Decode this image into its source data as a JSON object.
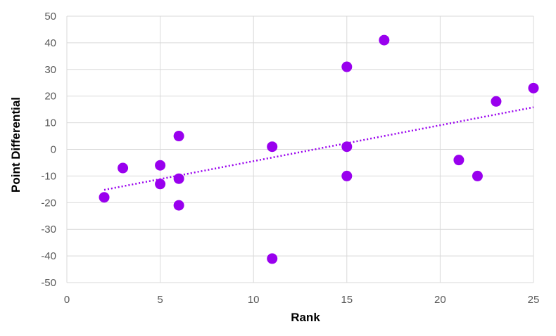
{
  "chart_data": {
    "type": "scatter",
    "title": "",
    "xlabel": "Rank",
    "ylabel": "Point Differential",
    "xlim": [
      0,
      25
    ],
    "ylim": [
      -50,
      50
    ],
    "x_ticks": [
      0,
      5,
      10,
      15,
      20,
      25
    ],
    "y_ticks": [
      -50,
      -40,
      -30,
      -20,
      -10,
      0,
      10,
      20,
      30,
      40,
      50
    ],
    "grid": true,
    "legend": "none",
    "series": [
      {
        "marker_color": "#9900ee",
        "points": [
          {
            "x": 2,
            "y": -18
          },
          {
            "x": 3,
            "y": -7
          },
          {
            "x": 5,
            "y": -6
          },
          {
            "x": 5,
            "y": -13
          },
          {
            "x": 6,
            "y": 5
          },
          {
            "x": 6,
            "y": -11
          },
          {
            "x": 6,
            "y": -21
          },
          {
            "x": 11,
            "y": 1
          },
          {
            "x": 11,
            "y": -41
          },
          {
            "x": 15,
            "y": 31
          },
          {
            "x": 15,
            "y": 1
          },
          {
            "x": 15,
            "y": -10
          },
          {
            "x": 17,
            "y": 41
          },
          {
            "x": 21,
            "y": -4
          },
          {
            "x": 22,
            "y": -10
          },
          {
            "x": 23,
            "y": 18
          },
          {
            "x": 25,
            "y": 23
          }
        ]
      }
    ],
    "trendline": {
      "type": "linear",
      "style": "dotted",
      "color": "#9900ee",
      "x_start": 2,
      "y_start": -15.2,
      "x_end": 25,
      "y_end": 15.8
    }
  }
}
